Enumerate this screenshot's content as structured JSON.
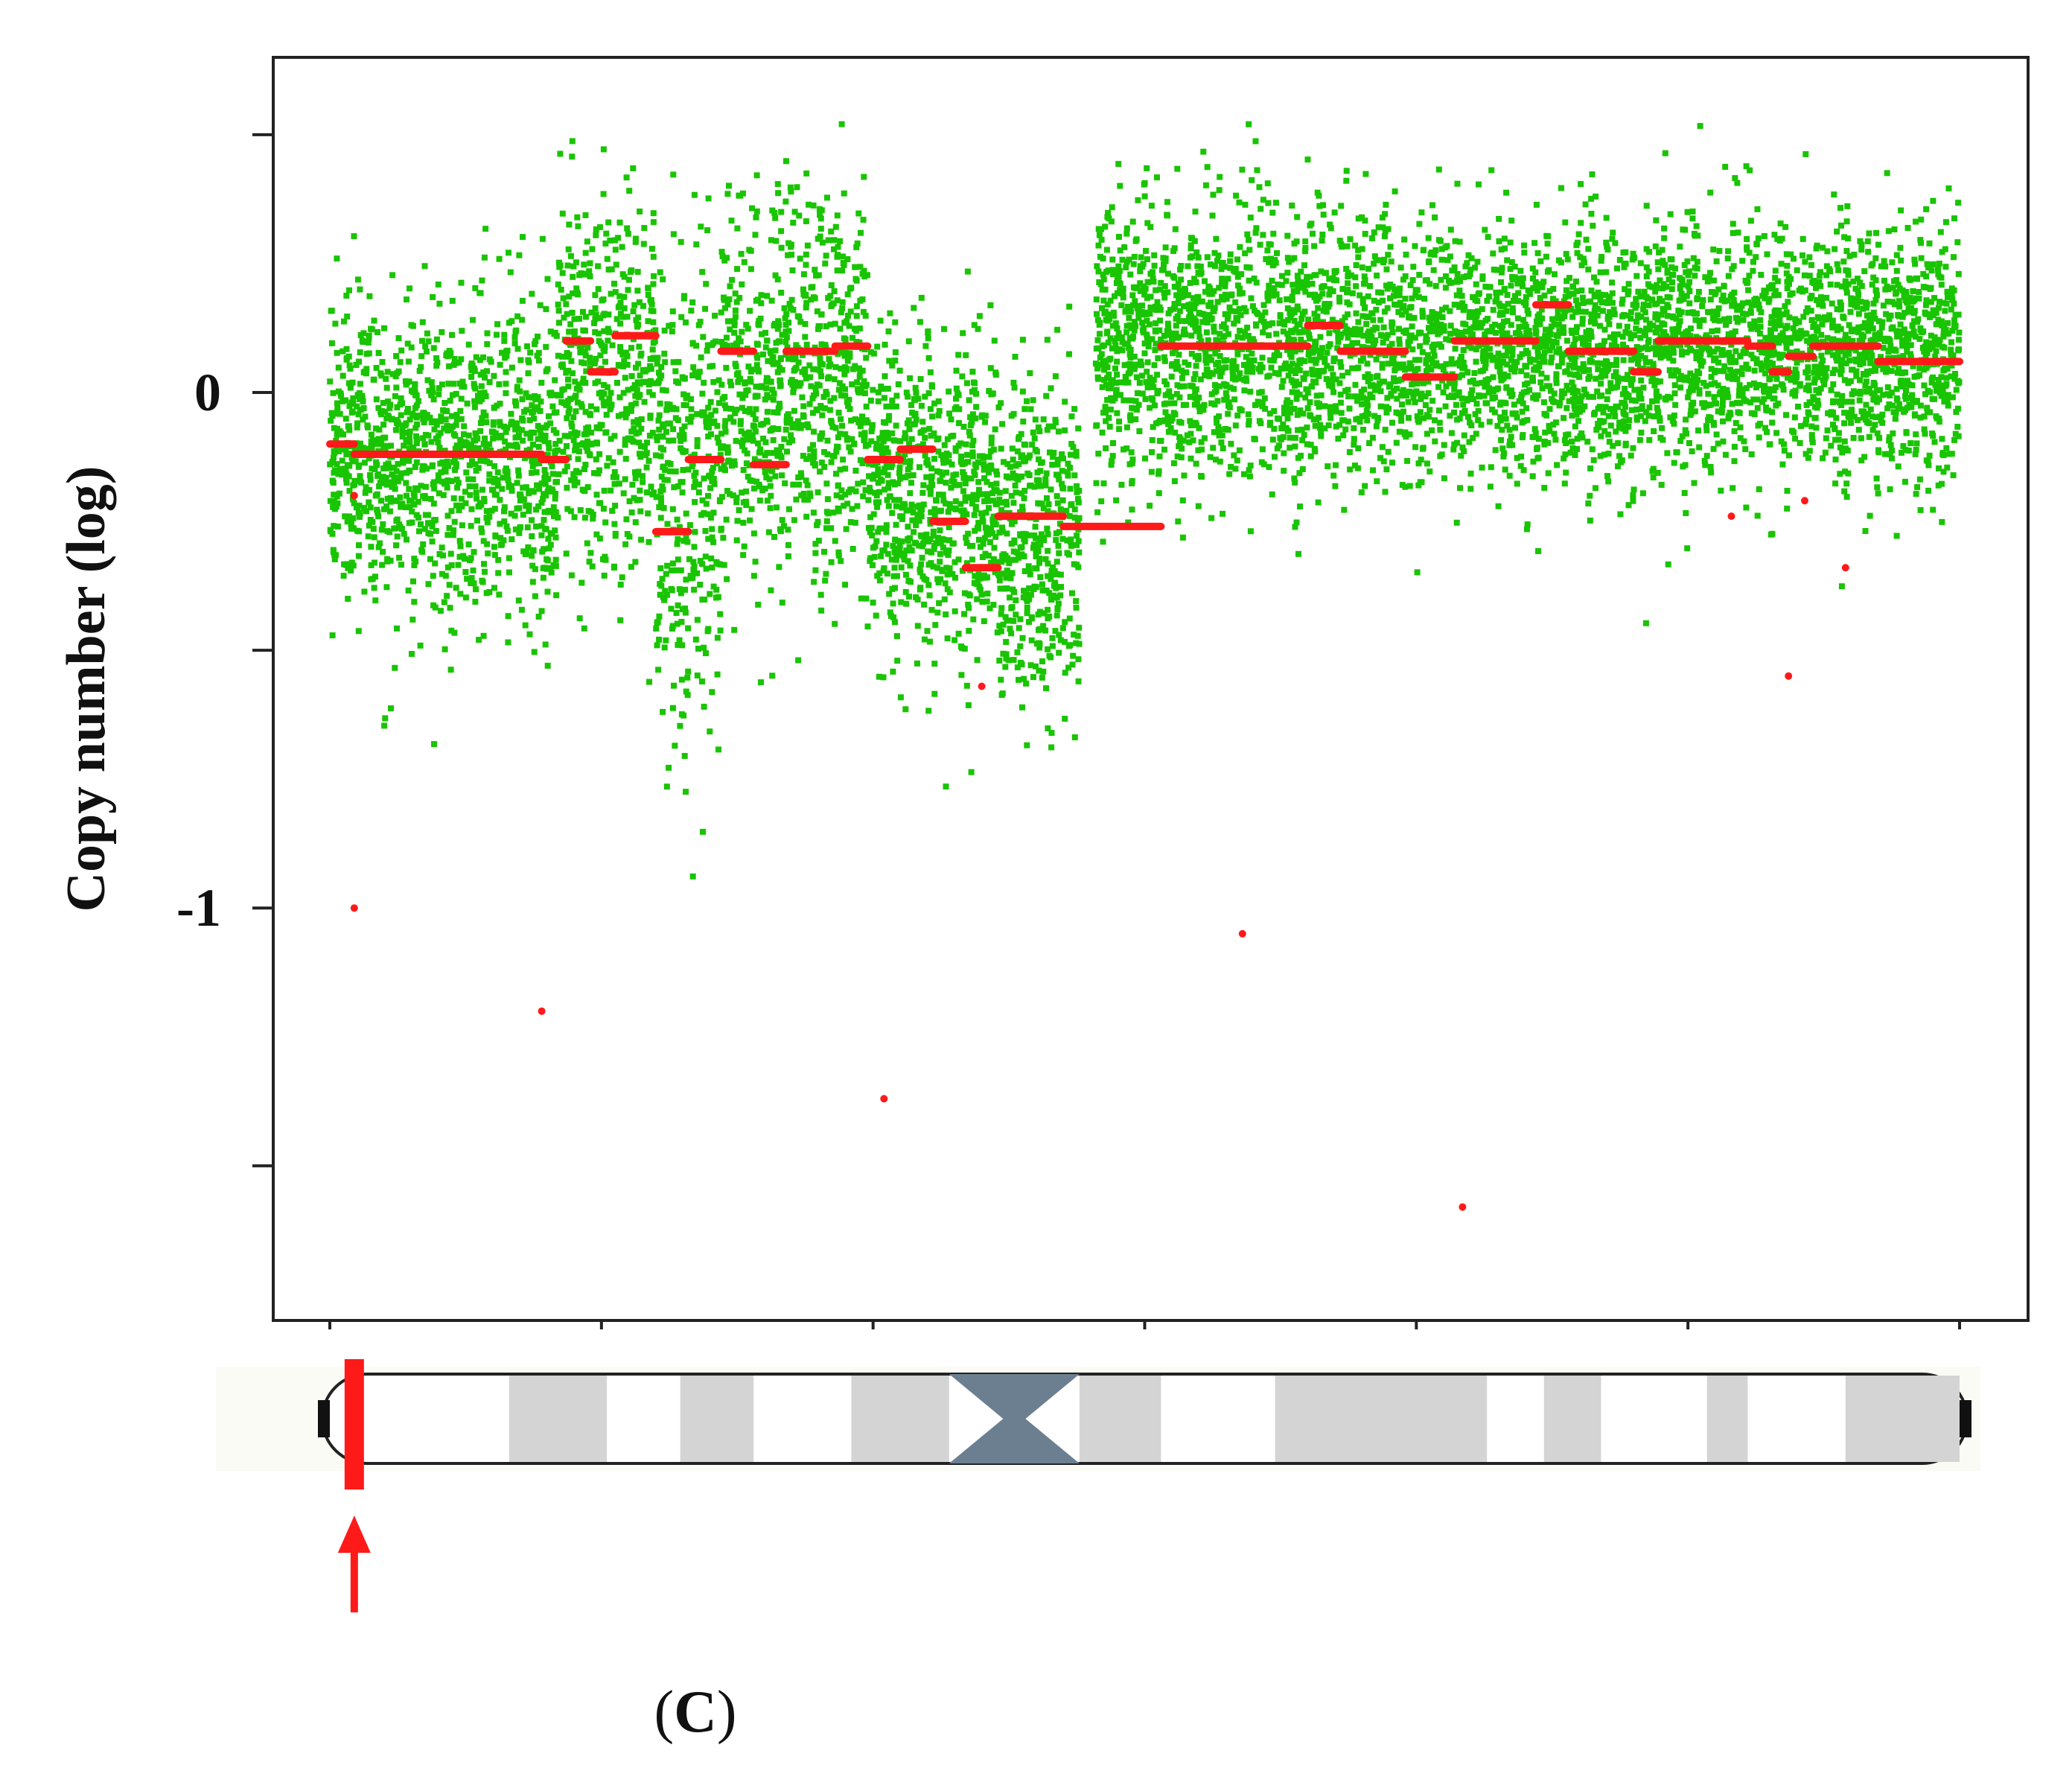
{
  "chart_data": {
    "type": "scatter",
    "title": "",
    "xlabel": "",
    "ylabel": "Copy number (log)",
    "ylim": [
      -1.8,
      0.65
    ],
    "xlim": [
      0,
      100
    ],
    "yticks": [
      0.5,
      0,
      -0.5,
      -1,
      -1.5
    ],
    "ytick_labels": [
      {
        "value": 0,
        "label": "0"
      },
      {
        "value": -1,
        "label": "-1"
      }
    ],
    "grid": false,
    "colors": {
      "probes": "#19c400",
      "segments": "#ff1a1a",
      "axis": "#222222"
    },
    "probe_clusters": [
      {
        "x": [
          0,
          14
        ],
        "center": -0.12,
        "spread": 0.15
      },
      {
        "x": [
          14,
          20
        ],
        "center": 0.02,
        "spread": 0.17
      },
      {
        "x": [
          20,
          24
        ],
        "center": -0.2,
        "spread": 0.24
      },
      {
        "x": [
          24,
          33
        ],
        "center": 0.01,
        "spread": 0.18
      },
      {
        "x": [
          33,
          41
        ],
        "center": -0.2,
        "spread": 0.15
      },
      {
        "x": [
          41,
          46
        ],
        "center": -0.28,
        "spread": 0.15
      },
      {
        "x": [
          47,
          58
        ],
        "center": 0.1,
        "spread": 0.13
      },
      {
        "x": [
          58,
          100
        ],
        "center": 0.08,
        "spread": 0.12
      }
    ],
    "segments": [
      {
        "x0": 0,
        "x1": 1.5,
        "y": -0.1
      },
      {
        "x0": 1.5,
        "x1": 13,
        "y": -0.12
      },
      {
        "x0": 13,
        "x1": 14.5,
        "y": -0.13
      },
      {
        "x0": 14.5,
        "x1": 16,
        "y": 0.1
      },
      {
        "x0": 16,
        "x1": 17.5,
        "y": 0.04
      },
      {
        "x0": 17.5,
        "x1": 20,
        "y": 0.11
      },
      {
        "x0": 20,
        "x1": 22,
        "y": -0.27
      },
      {
        "x0": 22,
        "x1": 24,
        "y": -0.13
      },
      {
        "x0": 24,
        "x1": 26,
        "y": 0.08
      },
      {
        "x0": 26,
        "x1": 28,
        "y": -0.14
      },
      {
        "x0": 28,
        "x1": 31,
        "y": 0.08
      },
      {
        "x0": 31,
        "x1": 33,
        "y": 0.09
      },
      {
        "x0": 33,
        "x1": 35,
        "y": -0.13
      },
      {
        "x0": 35,
        "x1": 37,
        "y": -0.11
      },
      {
        "x0": 37,
        "x1": 39,
        "y": -0.25
      },
      {
        "x0": 39,
        "x1": 41,
        "y": -0.34
      },
      {
        "x0": 41,
        "x1": 45,
        "y": -0.24
      },
      {
        "x0": 45,
        "x1": 51,
        "y": -0.26
      },
      {
        "x0": 51,
        "x1": 60,
        "y": 0.09
      },
      {
        "x0": 60,
        "x1": 62,
        "y": 0.13
      },
      {
        "x0": 62,
        "x1": 66,
        "y": 0.08
      },
      {
        "x0": 66,
        "x1": 69,
        "y": 0.03
      },
      {
        "x0": 69,
        "x1": 74,
        "y": 0.1
      },
      {
        "x0": 74,
        "x1": 76,
        "y": 0.17
      },
      {
        "x0": 76,
        "x1": 80,
        "y": 0.08
      },
      {
        "x0": 80,
        "x1": 81.5,
        "y": 0.04
      },
      {
        "x0": 81.5,
        "x1": 87,
        "y": 0.1
      },
      {
        "x0": 87,
        "x1": 88.5,
        "y": 0.09
      },
      {
        "x0": 88.5,
        "x1": 89.5,
        "y": 0.04
      },
      {
        "x0": 89.5,
        "x1": 91,
        "y": 0.07
      },
      {
        "x0": 91,
        "x1": 95,
        "y": 0.09
      },
      {
        "x0": 95,
        "x1": 100,
        "y": 0.06
      }
    ],
    "outliers": [
      {
        "x": 1.5,
        "y": -1.0
      },
      {
        "x": 1.5,
        "y": -0.2
      },
      {
        "x": 13,
        "y": -1.2
      },
      {
        "x": 34,
        "y": -1.37
      },
      {
        "x": 40,
        "y": -0.57
      },
      {
        "x": 56,
        "y": -1.05
      },
      {
        "x": 69.5,
        "y": -1.58
      },
      {
        "x": 89.5,
        "y": -0.55
      },
      {
        "x": 90.5,
        "y": -0.21
      },
      {
        "x": 93,
        "y": -0.34
      },
      {
        "x": 86,
        "y": -0.24
      }
    ]
  },
  "ideogram": {
    "highlight_position": 1.5,
    "colors": {
      "band": "#d4d4d4",
      "centromere": "#6c7f91",
      "telomere": "#111111",
      "highlight": "#ff1a1a"
    },
    "bands": [
      {
        "x0": 11,
        "x1": 17,
        "shade": "light"
      },
      {
        "x0": 21.5,
        "x1": 26,
        "shade": "light"
      },
      {
        "x0": 32,
        "x1": 38,
        "shade": "light"
      },
      {
        "x0": 38,
        "x1": 46,
        "shade": "centromere"
      },
      {
        "x0": 46,
        "x1": 51,
        "shade": "light"
      },
      {
        "x0": 58,
        "x1": 71,
        "shade": "light"
      },
      {
        "x0": 74.5,
        "x1": 78,
        "shade": "light"
      },
      {
        "x0": 84.5,
        "x1": 87,
        "shade": "light"
      },
      {
        "x0": 93,
        "x1": 100,
        "shade": "light"
      }
    ]
  },
  "panel_label": {
    "open": "(",
    "letter": "C",
    "close": ")"
  }
}
